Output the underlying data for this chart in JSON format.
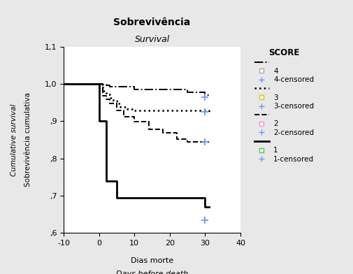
{
  "title1": "Sobrevivência",
  "title2": "Survival",
  "xlabel1": "Dias morte",
  "xlabel2": "Days before death",
  "ylabel1": "Sobrevivência cumulativa",
  "ylabel2": "Cumulative survival",
  "xlim": [
    -10,
    40
  ],
  "ylim": [
    0.6,
    1.1
  ],
  "yticks": [
    0.6,
    0.7,
    0.8,
    0.9,
    1.0,
    1.1
  ],
  "ytick_labels": [
    ",6",
    ",7",
    ",8",
    ",9",
    "1,0",
    "1,1"
  ],
  "xticks": [
    -10,
    0,
    10,
    20,
    30,
    40
  ],
  "legend_title": "SCORE",
  "score4_x": [
    -10,
    0,
    1,
    2,
    3,
    10,
    25,
    30,
    31
  ],
  "score4_y": [
    1.0,
    1.0,
    0.998,
    0.996,
    0.993,
    0.985,
    0.978,
    0.97,
    0.97
  ],
  "score4_censored_x": [
    30
  ],
  "score4_censored_y": [
    0.965
  ],
  "score3_x": [
    -10,
    0,
    1,
    2,
    3,
    4,
    5,
    6,
    8,
    10,
    30,
    31
  ],
  "score3_y": [
    1.0,
    1.0,
    0.982,
    0.972,
    0.962,
    0.955,
    0.947,
    0.938,
    0.932,
    0.928,
    0.928,
    0.925
  ],
  "score3_censored_x": [
    30
  ],
  "score3_censored_y": [
    0.925
  ],
  "score2_x": [
    -10,
    0,
    1,
    2,
    3,
    5,
    7,
    10,
    14,
    18,
    22,
    25,
    30,
    31
  ],
  "score2_y": [
    1.0,
    1.0,
    0.968,
    0.958,
    0.948,
    0.928,
    0.912,
    0.898,
    0.878,
    0.868,
    0.852,
    0.845,
    0.845,
    0.845
  ],
  "score2_censored_x": [
    30
  ],
  "score2_censored_y": [
    0.845
  ],
  "score1_x": [
    -10,
    0,
    2,
    5,
    13,
    30,
    31
  ],
  "score1_y": [
    1.0,
    0.9,
    0.74,
    0.695,
    0.695,
    0.67,
    0.67
  ],
  "score1_censored_x": [
    30
  ],
  "score1_censored_y": [
    0.635
  ],
  "bg_color": "#e8e8e8",
  "plot_bg": "#ffffff",
  "censored_color": "#6699ff",
  "line_color": "black",
  "square4_color": "#cccccc",
  "square3_color": "#cccc00",
  "square2_color": "#ff88cc",
  "square1_color": "#44cc44"
}
